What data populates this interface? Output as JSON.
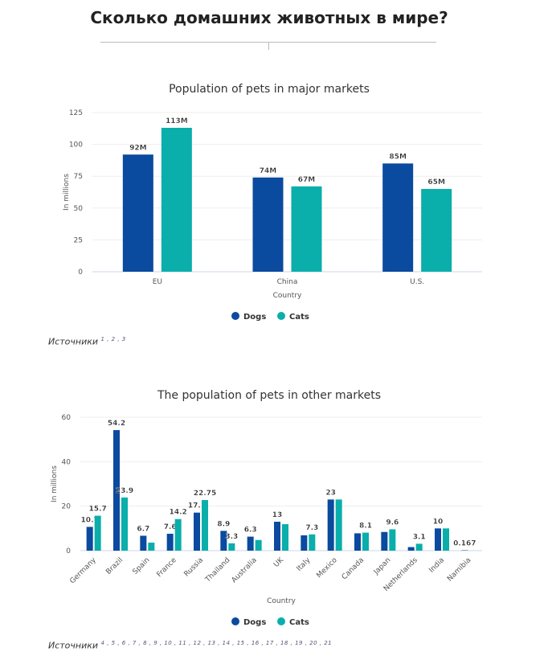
{
  "page": {
    "title": "Сколько домашних животных в мире?"
  },
  "colors": {
    "dogs": "#0a4a9f",
    "cats": "#0aaeaa"
  },
  "chart_data": [
    {
      "type": "bar",
      "title": "Population of pets in major markets",
      "xlabel": "Country",
      "ylabel": "In millions",
      "ylim": [
        0,
        125
      ],
      "yticks": [
        "0",
        "25",
        "50",
        "75",
        "100",
        "125"
      ],
      "categories": [
        "EU",
        "China",
        "U.S."
      ],
      "series": [
        {
          "name": "Dogs",
          "values": [
            92,
            74,
            85
          ],
          "labels": [
            "92M",
            "74M",
            "85M"
          ]
        },
        {
          "name": "Cats",
          "values": [
            113,
            67,
            65
          ],
          "labels": [
            "113M",
            "67M",
            "65M"
          ]
        }
      ],
      "legend": "bottom",
      "grid": true
    },
    {
      "type": "bar",
      "title": "The population of pets in other markets",
      "xlabel": "Country",
      "ylabel": "In millions",
      "ylim": [
        0,
        60
      ],
      "yticks": [
        "0",
        "20",
        "40",
        "60"
      ],
      "categories": [
        "Germany",
        "Brazil",
        "Spain",
        "France",
        "Russia",
        "Thailand",
        "Australia",
        "UK",
        "Italy",
        "Mexico",
        "Canada",
        "Japan",
        "Netherlands",
        "India",
        "Namibia"
      ],
      "series": [
        {
          "name": "Dogs",
          "values": [
            10.7,
            54.2,
            6.7,
            7.6,
            17.1,
            8.9,
            6.3,
            13,
            6.9,
            23,
            7.8,
            8.4,
            1.6,
            10,
            0.167
          ],
          "labels": [
            "10.7",
            "54.2",
            "6.7",
            "7.6",
            "17.1",
            "8.9",
            "6.3",
            "13",
            null,
            "23",
            null,
            null,
            null,
            "10",
            "0.167"
          ]
        },
        {
          "name": "Cats",
          "values": [
            15.7,
            23.9,
            3.6,
            14.2,
            22.75,
            3.3,
            4.8,
            11.9,
            7.3,
            23,
            8.1,
            9.6,
            3.1,
            10,
            0
          ],
          "labels": [
            "15.7",
            "23.9",
            null,
            "14.2",
            "22.75",
            "3.3",
            null,
            null,
            "7.3",
            null,
            "8.1",
            "9.6",
            "3.1",
            null,
            null
          ]
        }
      ],
      "legend": "bottom",
      "grid": true
    }
  ],
  "sources": [
    {
      "label": "Источники",
      "refs": "1 , 2 , 3"
    },
    {
      "label": "Источники",
      "refs": "4 , 5 , 6 , 7 , 8 , 9 , 10 , 11 , 12 , 13 , 14 , 15 , 16 , 17 , 18 , 19 , 20 , 21"
    }
  ]
}
